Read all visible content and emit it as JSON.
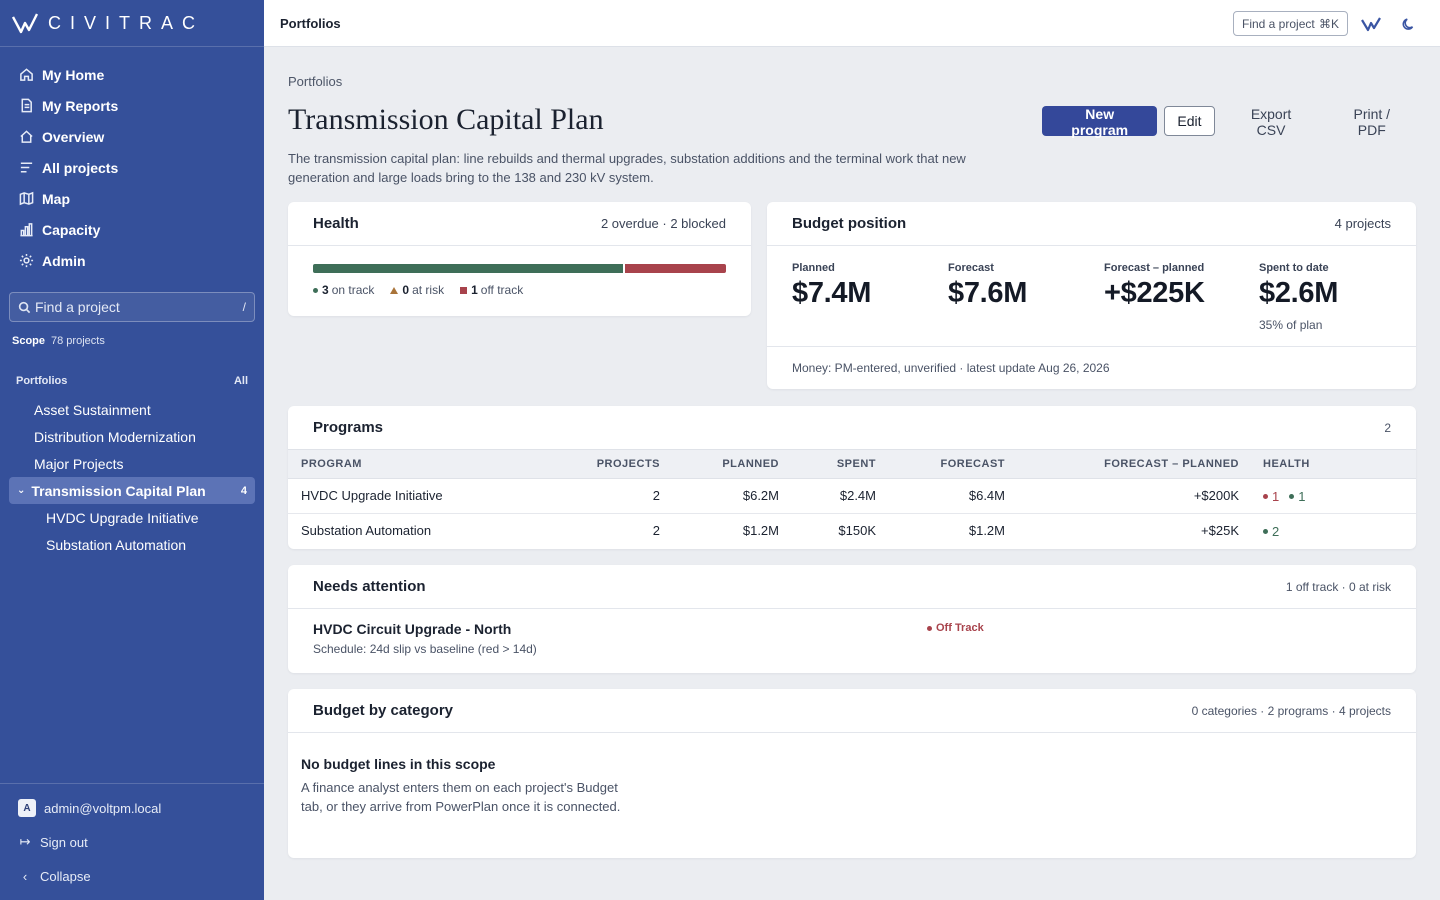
{
  "app": {
    "name": "CIVITRAC",
    "colors": {
      "sidebar": "#35509a",
      "primary": "#34489a",
      "on_track": "#3e6e58",
      "at_risk": "#a9743a",
      "off_track": "#a8434c"
    }
  },
  "sidebar": {
    "nav": [
      {
        "label": "My Home",
        "icon": "home-icon"
      },
      {
        "label": "My Reports",
        "icon": "document-icon"
      },
      {
        "label": "Overview",
        "icon": "home-outline-icon"
      },
      {
        "label": "All projects",
        "icon": "list-icon"
      },
      {
        "label": "Map",
        "icon": "map-icon"
      },
      {
        "label": "Capacity",
        "icon": "bar-chart-icon"
      },
      {
        "label": "Admin",
        "icon": "gear-icon"
      }
    ],
    "search": {
      "placeholder": "Find a project",
      "shortcut": "/"
    },
    "scope": {
      "label": "Scope",
      "value": "78 projects"
    },
    "portfolios": {
      "heading": "Portfolios",
      "all_label": "All",
      "items": [
        {
          "label": "Asset Sustainment"
        },
        {
          "label": "Distribution Modernization"
        },
        {
          "label": "Major Projects"
        }
      ],
      "active": {
        "label": "Transmission Capital Plan",
        "count": "4"
      },
      "children": [
        {
          "label": "HVDC Upgrade Initiative"
        },
        {
          "label": "Substation Automation"
        }
      ]
    },
    "footer": {
      "avatar_letter": "A",
      "user": "admin@voltpm.local",
      "sign_out": "Sign out",
      "collapse": "Collapse"
    }
  },
  "topbar": {
    "title": "Portfolios",
    "find_label": "Find a project",
    "find_shortcut": "⌘K"
  },
  "page": {
    "breadcrumb": "Portfolios",
    "title": "Transmission Capital Plan",
    "description": "The transmission capital plan: line rebuilds and thermal upgrades, substation additions and the terminal work that new generation and large loads bring to the 138 and 230 kV system.",
    "actions": {
      "new_program": "New program",
      "edit": "Edit",
      "export": "Export CSV",
      "print": "Print / PDF"
    }
  },
  "health": {
    "title": "Health",
    "meta": "2 overdue · 2 blocked",
    "on_track_fraction": 0.75,
    "legend": {
      "on_track_count": "3",
      "on_track_label": "on track",
      "at_risk_count": "0",
      "at_risk_label": "at risk",
      "off_track_count": "1",
      "off_track_label": "off track"
    }
  },
  "budget": {
    "title": "Budget position",
    "meta": "4 projects",
    "kpis": {
      "planned": {
        "label": "Planned",
        "value": "$7.4M"
      },
      "forecast": {
        "label": "Forecast",
        "value": "$7.6M"
      },
      "delta": {
        "label": "Forecast – planned",
        "value": "+$225K"
      },
      "spent": {
        "label": "Spent to date",
        "value": "$2.6M",
        "sub": "35% of plan"
      }
    },
    "footnote": "Money: PM-entered, unverified · latest update Aug 26, 2026"
  },
  "programs": {
    "title": "Programs",
    "count": "2",
    "columns": [
      "PROGRAM",
      "PROJECTS",
      "PLANNED",
      "SPENT",
      "FORECAST",
      "FORECAST – PLANNED",
      "HEALTH"
    ],
    "rows": [
      {
        "program": "HVDC Upgrade Initiative",
        "projects": "2",
        "planned": "$6.2M",
        "spent": "$2.4M",
        "forecast": "$6.4M",
        "delta": "+$200K",
        "red": "1",
        "green": "1"
      },
      {
        "program": "Substation Automation",
        "projects": "2",
        "planned": "$1.2M",
        "spent": "$150K",
        "forecast": "$1.2M",
        "delta": "+$25K",
        "green": "2"
      }
    ]
  },
  "attention": {
    "title": "Needs attention",
    "meta": "1 off track · 0 at risk",
    "item": {
      "title": "HVDC Circuit Upgrade - North",
      "detail": "Schedule: 24d slip vs baseline (red > 14d)",
      "status": "Off Track"
    }
  },
  "category": {
    "title": "Budget by category",
    "meta": "0 categories · 2 programs · 4 projects",
    "empty_title": "No budget lines in this scope",
    "empty_body": "A finance analyst enters them on each project's Budget tab, or they arrive from PowerPlan once it is connected."
  }
}
